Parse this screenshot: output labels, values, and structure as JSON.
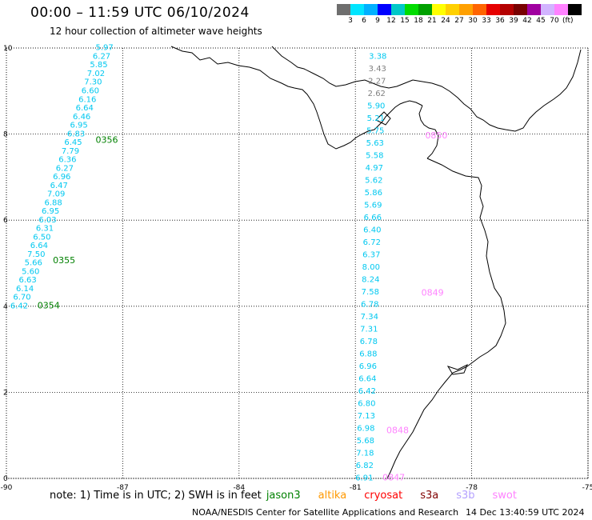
{
  "title": "00:00 – 11:59 UTC 06/10/2024",
  "subtitle": "12 hour collection of altimeter wave heights",
  "scale": {
    "colors": [
      "#6e6e6e",
      "#00e5ff",
      "#00b0ff",
      "#0000ff",
      "#00c8c8",
      "#00dc00",
      "#00a000",
      "#ffff00",
      "#ffd000",
      "#ffa000",
      "#ff6400",
      "#e60000",
      "#b40000",
      "#780000",
      "#a000a0",
      "#d2b4ff",
      "#ff82ff",
      "#000000"
    ],
    "labels": [
      "3",
      "6",
      "9",
      "12",
      "15",
      "18",
      "21",
      "24",
      "27",
      "30",
      "33",
      "36",
      "39",
      "42",
      "45",
      "70"
    ],
    "unit": "(ft)"
  },
  "axes": {
    "x_ticks": [
      "-90",
      "-87",
      "-84",
      "-81",
      "-78",
      "-75"
    ],
    "y_ticks": [
      "0",
      "2",
      "4",
      "6",
      "8",
      "10"
    ],
    "x_range": [
      -90,
      -75
    ],
    "y_range": [
      0,
      10
    ]
  },
  "track_colors": {
    "jason3": "#00c8f0",
    "cryosat": "#00c8f0",
    "grey": "#808080",
    "label_jason3": "#008000",
    "label_swot": "#ff82ff"
  },
  "tracks": [
    {
      "id": "west",
      "values": [
        "5.97",
        "6.27",
        "5.85",
        "7.02",
        "7.30",
        "6.60",
        "6.16",
        "6.64",
        "6.46",
        "6.95",
        "6.83",
        "6.45",
        "7.79",
        "6.36",
        "6.27",
        "6.96",
        "6.47",
        "7.09",
        "6.88",
        "6.95",
        "6.03",
        "6.31",
        "6.50",
        "6.64",
        "7.50",
        "5.66",
        "5.60",
        "6.63",
        "6.14",
        "6.70",
        "6.42"
      ],
      "time_labels": [
        {
          "text": "0356",
          "lon": -87.7,
          "lat": 7.8
        },
        {
          "text": "0355",
          "lon": -88.8,
          "lat": 5.0
        },
        {
          "text": "0354",
          "lon": -89.2,
          "lat": 3.95
        }
      ]
    },
    {
      "id": "east",
      "values": [
        "3.38",
        "3.43",
        "2.27",
        "2.62",
        "5.90",
        "5.21",
        "5.75",
        "5.63",
        "5.58",
        "4.97",
        "5.62",
        "5.86",
        "5.69",
        "6.66",
        "6.40",
        "6.72",
        "6.37",
        "8.00",
        "8.24",
        "7.58",
        "6.78",
        "7.34",
        "7.31",
        "6.78",
        "6.88",
        "6.96",
        "6.64",
        "6.42",
        "6.80",
        "7.13",
        "6.98",
        "5.68",
        "7.18",
        "6.82",
        "6.91"
      ],
      "time_labels": [
        {
          "text": "0850",
          "lon": -79.2,
          "lat": 7.9
        },
        {
          "text": "0849",
          "lon": -79.3,
          "lat": 4.25
        },
        {
          "text": "0848",
          "lon": -80.2,
          "lat": 1.05
        },
        {
          "text": "0847",
          "lon": -80.3,
          "lat": -0.05
        }
      ]
    }
  ],
  "notes": {
    "prefix": "note:  1) Time is in UTC;  2) SWH is in feet",
    "satellites": [
      {
        "name": "jason3",
        "color": "#008000"
      },
      {
        "name": "altika",
        "color": "#ff9900"
      },
      {
        "name": "cryosat",
        "color": "#ff0000"
      },
      {
        "name": "s3a",
        "color": "#800000"
      },
      {
        "name": "s3b",
        "color": "#b4a0ff"
      },
      {
        "name": "swot",
        "color": "#ff82ff"
      }
    ]
  },
  "credit": "NOAA/NESDIS Center for Satellite Applications and Research",
  "credit_time": "14 Dec 13:40:59 UTC 2024"
}
